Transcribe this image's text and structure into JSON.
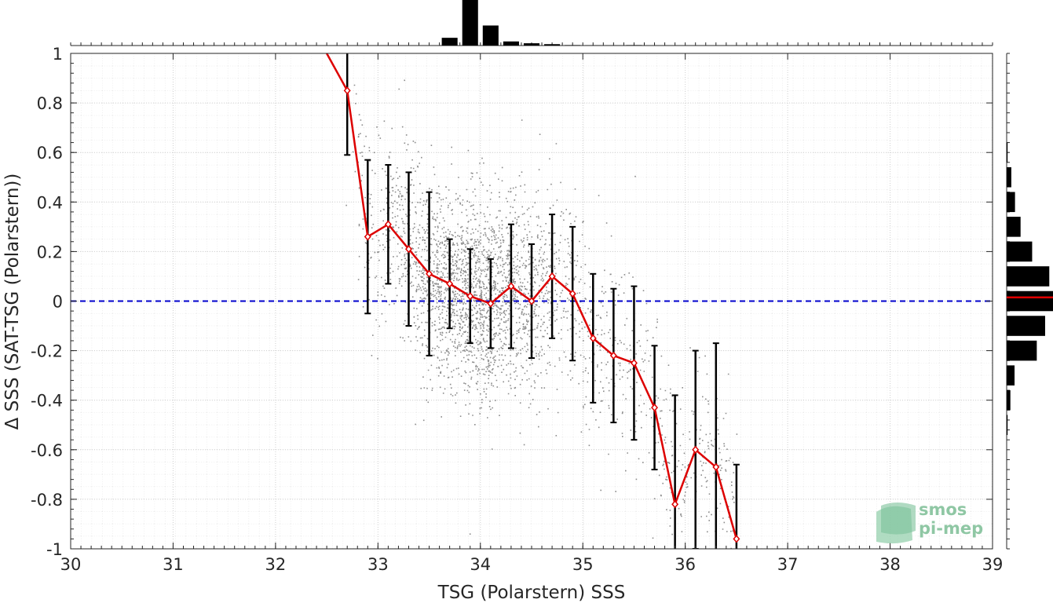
{
  "chart_data": {
    "type": "scatter",
    "xlabel": "TSG (Polarstern) SSS",
    "ylabel": "Δ SSS (SAT-TSG (Polarstern))",
    "xlim": [
      30,
      39
    ],
    "ylim": [
      -1,
      1
    ],
    "x_ticks": [
      "30",
      "31",
      "32",
      "33",
      "34",
      "35",
      "36",
      "37",
      "38",
      "39"
    ],
    "y_ticks": [
      "1",
      "0.8",
      "0.6",
      "0.4",
      "0.2",
      "0",
      "-0.2",
      "-0.4",
      "-0.6",
      "-0.8",
      "-1"
    ],
    "grid": true,
    "reference_line": {
      "y": 0,
      "style": "dashed",
      "color": "#0000cc"
    },
    "colors": {
      "scatter": "#8c8c8c",
      "binned_mean": "#dd0000",
      "error_bars": "#000000",
      "bars": "#000000"
    },
    "binned_mean": {
      "x": [
        32.5,
        32.7,
        32.9,
        33.1,
        33.3,
        33.5,
        33.7,
        33.9,
        34.1,
        34.3,
        34.5,
        34.7,
        34.9,
        35.1,
        35.3,
        35.5,
        35.7,
        35.9,
        36.1,
        36.3,
        36.5
      ],
      "y": [
        1.0,
        0.85,
        0.26,
        0.31,
        0.21,
        0.11,
        0.07,
        0.02,
        -0.01,
        0.06,
        0.0,
        0.1,
        0.03,
        -0.15,
        -0.22,
        -0.25,
        -0.43,
        -0.82,
        -0.6,
        -0.67,
        -0.96
      ],
      "std": [
        null,
        0.26,
        0.31,
        0.24,
        0.31,
        0.33,
        0.18,
        0.19,
        0.18,
        0.25,
        0.23,
        0.25,
        0.27,
        0.26,
        0.27,
        0.31,
        0.25,
        0.44,
        0.4,
        0.5,
        0.3
      ]
    },
    "x_histogram": {
      "centers": [
        32.7,
        32.9,
        33.1,
        33.3,
        33.5,
        33.7,
        33.9,
        34.1,
        34.3,
        34.5,
        34.7,
        34.9,
        35.1,
        35.3,
        35.5
      ],
      "counts": [
        0,
        0,
        0,
        0,
        0,
        0.17,
        1.0,
        0.44,
        0.09,
        0.05,
        0.03,
        0.01,
        0.005,
        0.003,
        0.01
      ]
    },
    "y_histogram": {
      "centers": [
        0.6,
        0.5,
        0.4,
        0.3,
        0.2,
        0.1,
        0.0,
        -0.1,
        -0.2,
        -0.3,
        -0.4,
        -0.5
      ],
      "counts": [
        0.02,
        0.1,
        0.18,
        0.3,
        0.55,
        0.92,
        1.0,
        0.83,
        0.65,
        0.17,
        0.08,
        0.02
      ],
      "mean_line": {
        "y": 0.015,
        "color": "#dd0000"
      }
    }
  },
  "logo": {
    "line1": "smos",
    "line2": "pi-mep"
  }
}
